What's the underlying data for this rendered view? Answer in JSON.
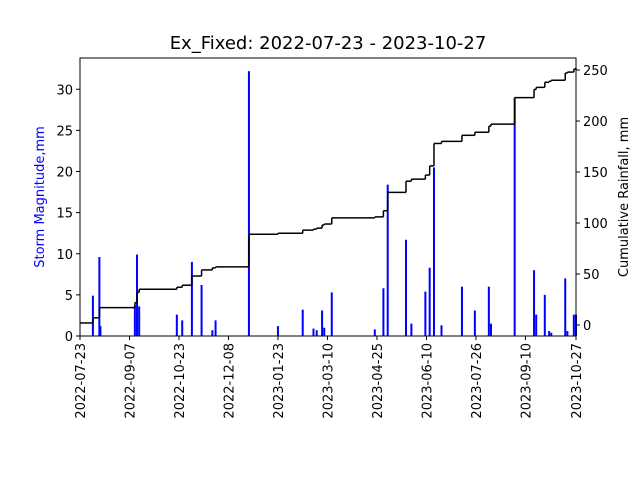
{
  "chart_data": {
    "type": "bar",
    "title": "Ex_Fixed: 2022-07-23 - 2023-10-27",
    "ylabel": "Storm Magnitude,mm",
    "y2label": "Cumulative Rainfall, mm",
    "xlim": [
      "2022-07-23",
      "2023-10-27"
    ],
    "xticks": [
      "2022-07-23",
      "2022-09-07",
      "2022-10-23",
      "2022-12-08",
      "2023-01-23",
      "2023-03-10",
      "2023-04-25",
      "2023-06-10",
      "2023-07-26",
      "2023-09-10",
      "2023-10-27"
    ],
    "ylim": [
      0,
      33.8
    ],
    "yticks": [
      0,
      5,
      10,
      15,
      20,
      25,
      30
    ],
    "y2lim": [
      -10.8,
      261.8
    ],
    "y2ticks": [
      0,
      50,
      100,
      150,
      200,
      250
    ],
    "series": [
      {
        "type": "bar",
        "color": "#0000ff",
        "x": [
          "2022-08-04",
          "2022-08-10",
          "2022-08-11",
          "2022-09-12",
          "2022-09-14",
          "2022-09-16",
          "2022-10-21",
          "2022-10-26",
          "2022-11-04",
          "2022-11-13",
          "2022-11-23",
          "2022-11-26",
          "2022-12-27",
          "2023-01-23",
          "2023-02-15",
          "2023-02-25",
          "2023-02-28",
          "2023-03-05",
          "2023-03-07",
          "2023-03-14",
          "2023-04-23",
          "2023-05-01",
          "2023-05-05",
          "2023-05-22",
          "2023-05-27",
          "2023-06-09",
          "2023-06-13",
          "2023-06-17",
          "2023-06-24",
          "2023-07-13",
          "2023-07-25",
          "2023-08-07",
          "2023-08-09",
          "2023-08-31",
          "2023-09-18",
          "2023-09-20",
          "2023-09-28",
          "2023-10-02",
          "2023-10-04",
          "2023-10-17",
          "2023-10-19",
          "2023-10-25",
          "2023-10-27"
        ],
        "values": [
          4.9,
          9.6,
          1.2,
          3.7,
          9.9,
          3.6,
          2.6,
          1.9,
          9.0,
          6.2,
          0.7,
          1.9,
          32.2,
          1.2,
          3.2,
          0.9,
          0.7,
          3.1,
          1.0,
          5.3,
          0.8,
          5.8,
          18.4,
          11.7,
          1.5,
          5.4,
          8.3,
          20.5,
          1.3,
          6.0,
          3.1,
          6.0,
          1.5,
          28.9,
          8.0,
          2.6,
          5.0,
          0.6,
          0.4,
          7.0,
          0.6,
          2.6,
          2.6
        ]
      },
      {
        "type": "step",
        "axis": "y2",
        "color": "#000000",
        "x": [
          "2022-07-23",
          "2022-08-04",
          "2022-08-10",
          "2022-09-12",
          "2022-09-14",
          "2022-09-16",
          "2022-10-21",
          "2022-10-26",
          "2022-11-04",
          "2022-11-13",
          "2022-11-23",
          "2022-11-26",
          "2022-12-27",
          "2023-01-23",
          "2023-02-15",
          "2023-02-25",
          "2023-02-28",
          "2023-03-05",
          "2023-03-07",
          "2023-03-14",
          "2023-04-23",
          "2023-05-01",
          "2023-05-05",
          "2023-05-22",
          "2023-05-27",
          "2023-06-09",
          "2023-06-13",
          "2023-06-17",
          "2023-06-24",
          "2023-07-13",
          "2023-07-25",
          "2023-08-07",
          "2023-08-09",
          "2023-08-31",
          "2023-09-18",
          "2023-09-20",
          "2023-09-28",
          "2023-10-02",
          "2023-10-04",
          "2023-10-17",
          "2023-10-19",
          "2023-10-25",
          "2023-10-27"
        ],
        "values": [
          2,
          7,
          17,
          22,
          32,
          35,
          37,
          39,
          48,
          54,
          56,
          57,
          89,
          90,
          93,
          94,
          95,
          98,
          99,
          105,
          106,
          112,
          130,
          141,
          143,
          147,
          156,
          178,
          180,
          186,
          189,
          195,
          197,
          223,
          231,
          233,
          238,
          239,
          240,
          247,
          248,
          251,
          252
        ]
      }
    ]
  }
}
